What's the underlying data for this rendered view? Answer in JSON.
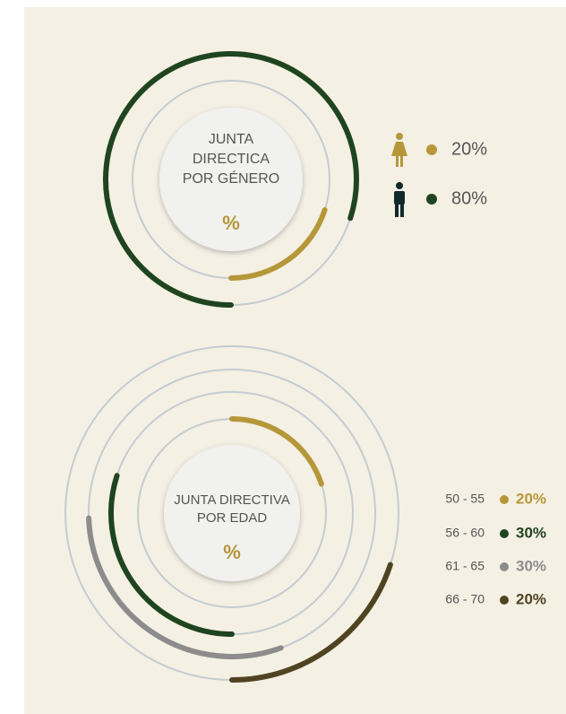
{
  "chart_data": [
    {
      "type": "radial_bar",
      "title": [
        "JUNTA",
        "DIRECTICA",
        "POR GÉNERO"
      ],
      "center_label": "%",
      "values": [
        20,
        80
      ],
      "value_labels": [
        "20%",
        "80%"
      ],
      "colors": [
        "#b5973a",
        "#1f4420"
      ]
    },
    {
      "type": "radial_bar",
      "title": [
        "JUNTA DIRECTIVA",
        "POR EDAD"
      ],
      "center_label": "%",
      "categories": [
        "50 - 55",
        "56 - 60",
        "61 - 65",
        "66 - 70"
      ],
      "values": [
        20,
        30,
        30,
        20
      ],
      "value_labels": [
        "20%",
        "30%",
        "30%",
        "20%"
      ],
      "colors": [
        "#b5973a",
        "#1f4420",
        "#8c8c8c",
        "#4f4322"
      ]
    }
  ]
}
